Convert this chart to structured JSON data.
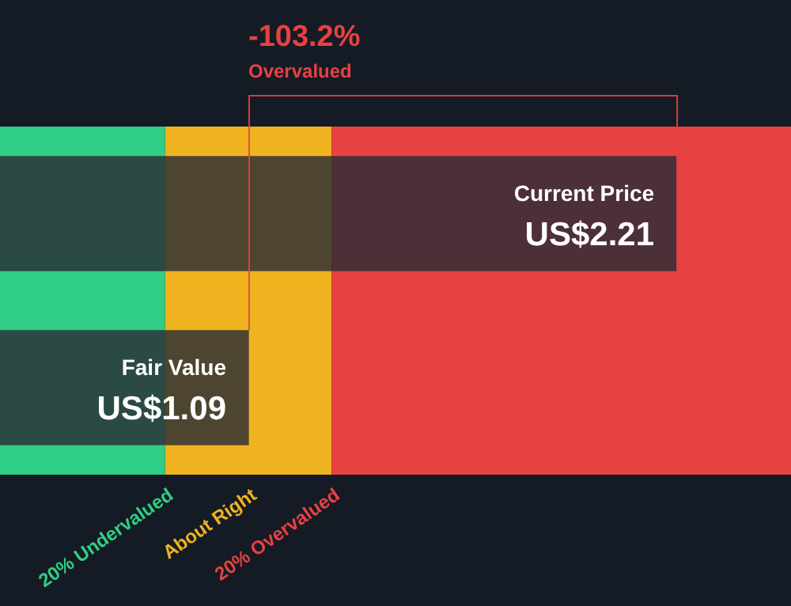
{
  "chart_data": {
    "type": "bar",
    "orientation": "horizontal",
    "categories": [
      "Current Price",
      "Fair Value"
    ],
    "series": [
      {
        "color": "#2b2d35",
        "values": [
          2.21,
          1.09
        ],
        "value_labels": [
          "US$2.21",
          "US$1.09"
        ]
      }
    ],
    "xlim": [
      0.44,
      2.51
    ],
    "bands": [
      {
        "axis": "x",
        "from": 0.44,
        "to": 0.872,
        "label": "20% Undervalued",
        "color": "#2fce85"
      },
      {
        "axis": "x",
        "from": 0.872,
        "to": 1.308,
        "label": "About Right",
        "color": "#eeb31f"
      },
      {
        "axis": "x",
        "from": 1.308,
        "to": 2.51,
        "label": "20% Overvalued",
        "color": "#e84142"
      }
    ],
    "annotations": [
      "-103.2%",
      "Overvalued"
    ],
    "legend": false
  }
}
